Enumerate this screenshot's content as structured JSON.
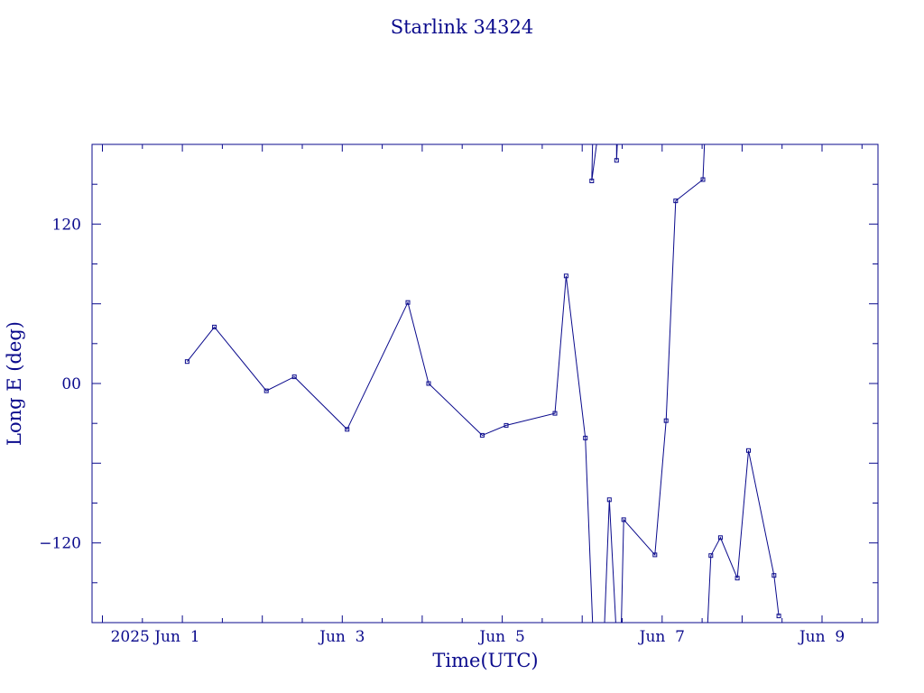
{
  "chart_data": {
    "type": "line",
    "title": "Starlink 34324",
    "xlabel": "Time(UTC)",
    "ylabel": "Long E (deg)",
    "x_tick_labels": [
      {
        "t": 1.0,
        "label": "2025 Jun  1"
      },
      {
        "t": 3.0,
        "label": "Jun  3"
      },
      {
        "t": 5.0,
        "label": "Jun  5"
      },
      {
        "t": 7.0,
        "label": "Jun  7"
      },
      {
        "t": 9.0,
        "label": "Jun  9"
      }
    ],
    "y_tick_labels": [
      {
        "v": 120,
        "label": "120"
      },
      {
        "v": 0,
        "label": "00"
      },
      {
        "v": -120,
        "label": "−120"
      }
    ],
    "xlim": [
      -0.13,
      9.7
    ],
    "ylim": [
      -180,
      180
    ],
    "x_minor_step": 0.5,
    "y_minor_step": 30,
    "grid": false,
    "color": "#0a0a8c",
    "x_unit": "days after 2025-05-31 00:00 UTC",
    "series": [
      {
        "name": "",
        "segments": [
          [
            [
              1.06,
              16.5
            ],
            [
              1.4,
              42.5
            ],
            [
              2.05,
              -5.5
            ],
            [
              2.4,
              5.0
            ],
            [
              3.06,
              -34.5
            ],
            [
              3.82,
              61.0
            ],
            [
              4.08,
              0.0
            ],
            [
              4.75,
              -39.0
            ],
            [
              5.05,
              -31.5
            ],
            [
              5.66,
              -22.5
            ],
            [
              5.8,
              81.0
            ],
            [
              6.04,
              -41.0
            ],
            [
              6.13,
              -180
            ]
          ],
          [
            [
              6.13,
              180
            ],
            [
              6.12,
              152.5
            ],
            [
              6.18,
              180
            ]
          ],
          [
            [
              6.28,
              -180
            ],
            [
              6.34,
              -87.5
            ],
            [
              6.42,
              -180
            ]
          ],
          [
            [
              6.43,
              180
            ],
            [
              6.43,
              168.0
            ],
            [
              6.44,
              180
            ]
          ],
          [
            [
              6.49,
              -180
            ],
            [
              6.52,
              -102.5
            ],
            [
              6.91,
              -129.0
            ],
            [
              7.05,
              -28.0
            ],
            [
              7.17,
              137.5
            ],
            [
              7.51,
              153.5
            ],
            [
              7.53,
              180
            ]
          ],
          [
            [
              7.57,
              -180
            ],
            [
              7.61,
              -129.5
            ],
            [
              7.73,
              -116.0
            ],
            [
              7.94,
              -146.5
            ],
            [
              8.08,
              -50.5
            ],
            [
              8.4,
              -144.5
            ],
            [
              8.46,
              -175.0
            ]
          ]
        ]
      }
    ]
  }
}
